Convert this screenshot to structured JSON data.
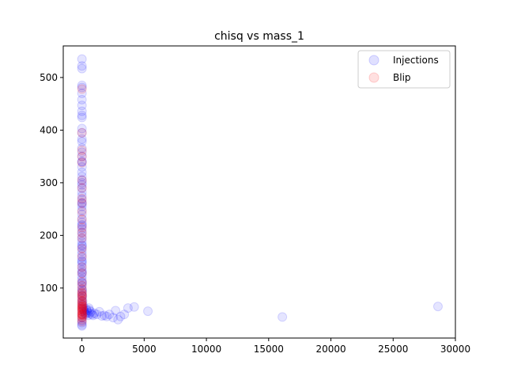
{
  "chart_data": {
    "type": "scatter",
    "title": "chisq vs mass_1",
    "xlabel": "",
    "ylabel": "",
    "xlim": [
      -1500,
      30000
    ],
    "ylim": [
      5,
      560
    ],
    "xticks": [
      0,
      5000,
      10000,
      15000,
      20000,
      25000,
      30000
    ],
    "yticks": [
      100,
      200,
      300,
      400,
      500
    ],
    "legend_position": "upper-right",
    "grid": false,
    "series": [
      {
        "name": "Injections",
        "color": "#0000ff",
        "alpha": 0.1,
        "points": [
          [
            2,
            535
          ],
          [
            3,
            522
          ],
          [
            4,
            517
          ],
          [
            2,
            485
          ],
          [
            5,
            481
          ],
          [
            3,
            470
          ],
          [
            2,
            458
          ],
          [
            4,
            447
          ],
          [
            3,
            436
          ],
          [
            2,
            428
          ],
          [
            5,
            424
          ],
          [
            3,
            403
          ],
          [
            2,
            395
          ],
          [
            4,
            383
          ],
          [
            3,
            378
          ],
          [
            2,
            366
          ],
          [
            4,
            358
          ],
          [
            3,
            350
          ],
          [
            2,
            340
          ],
          [
            5,
            330
          ],
          [
            3,
            320
          ],
          [
            2,
            312
          ],
          [
            4,
            305
          ],
          [
            3,
            296
          ],
          [
            2,
            290
          ],
          [
            4,
            282
          ],
          [
            3,
            275
          ],
          [
            2,
            268
          ],
          [
            5,
            262
          ],
          [
            3,
            255
          ],
          [
            2,
            248
          ],
          [
            4,
            240
          ],
          [
            3,
            232
          ],
          [
            2,
            225
          ],
          [
            4,
            218
          ],
          [
            3,
            212
          ],
          [
            2,
            206
          ],
          [
            5,
            200
          ],
          [
            3,
            194
          ],
          [
            2,
            188
          ],
          [
            4,
            182
          ],
          [
            3,
            176
          ],
          [
            2,
            170
          ],
          [
            4,
            164
          ],
          [
            3,
            158
          ],
          [
            2,
            152
          ],
          [
            5,
            146
          ],
          [
            3,
            140
          ],
          [
            2,
            134
          ],
          [
            4,
            128
          ],
          [
            3,
            122
          ],
          [
            2,
            116
          ],
          [
            4,
            110
          ],
          [
            3,
            104
          ],
          [
            2,
            98
          ],
          [
            5,
            92
          ],
          [
            3,
            86
          ],
          [
            2,
            80
          ],
          [
            4,
            74
          ],
          [
            3,
            68
          ],
          [
            2,
            62
          ],
          [
            4,
            56
          ],
          [
            3,
            50
          ],
          [
            2,
            44
          ],
          [
            5,
            38
          ],
          [
            3,
            34
          ],
          [
            2,
            30
          ],
          [
            4,
            28
          ],
          [
            8,
            260
          ],
          [
            10,
            300
          ],
          [
            6,
            340
          ],
          [
            12,
            220
          ],
          [
            15,
            180
          ],
          [
            9,
            150
          ],
          [
            20,
            130
          ],
          [
            25,
            110
          ],
          [
            30,
            95
          ],
          [
            40,
            85
          ],
          [
            60,
            75
          ],
          [
            80,
            68
          ],
          [
            120,
            62
          ],
          [
            150,
            58
          ],
          [
            200,
            55
          ],
          [
            250,
            52
          ],
          [
            300,
            50
          ],
          [
            350,
            60
          ],
          [
            400,
            57
          ],
          [
            450,
            53
          ],
          [
            500,
            48
          ],
          [
            550,
            62
          ],
          [
            600,
            58
          ],
          [
            650,
            52
          ],
          [
            700,
            55
          ],
          [
            800,
            50
          ],
          [
            900,
            48
          ],
          [
            1000,
            52
          ],
          [
            1200,
            50
          ],
          [
            1400,
            55
          ],
          [
            1600,
            47
          ],
          [
            1800,
            48
          ],
          [
            2000,
            46
          ],
          [
            2200,
            50
          ],
          [
            2500,
            44
          ],
          [
            2700,
            57
          ],
          [
            2900,
            40
          ],
          [
            3100,
            46
          ],
          [
            3400,
            50
          ],
          [
            3700,
            62
          ],
          [
            4200,
            64
          ],
          [
            5300,
            56
          ],
          [
            16100,
            45
          ],
          [
            28600,
            65
          ]
        ]
      },
      {
        "name": "Blip",
        "color": "#ff0000",
        "alpha": 0.1,
        "points": [
          [
            3,
            478
          ],
          [
            2,
            395
          ],
          [
            4,
            362
          ],
          [
            3,
            350
          ],
          [
            2,
            338
          ],
          [
            3,
            305
          ],
          [
            4,
            290
          ],
          [
            2,
            270
          ],
          [
            3,
            262
          ],
          [
            4,
            245
          ],
          [
            2,
            230
          ],
          [
            3,
            215
          ],
          [
            4,
            205
          ],
          [
            2,
            195
          ],
          [
            3,
            175
          ],
          [
            4,
            160
          ],
          [
            2,
            140
          ],
          [
            3,
            128
          ],
          [
            4,
            112
          ],
          [
            2,
            105
          ],
          [
            3,
            98
          ],
          [
            4,
            92
          ],
          [
            2,
            88
          ],
          [
            3,
            84
          ],
          [
            4,
            80
          ],
          [
            2,
            76
          ],
          [
            3,
            72
          ],
          [
            4,
            68
          ],
          [
            2,
            64
          ],
          [
            3,
            60
          ],
          [
            4,
            56
          ],
          [
            2,
            52
          ],
          [
            3,
            48
          ],
          [
            4,
            44
          ],
          [
            2,
            40
          ],
          [
            3,
            36
          ],
          [
            5,
            90
          ],
          [
            6,
            70
          ],
          [
            8,
            60
          ],
          [
            10,
            50
          ],
          [
            12,
            75
          ],
          [
            15,
            65
          ],
          [
            18,
            55
          ],
          [
            20,
            45
          ],
          [
            25,
            85
          ],
          [
            30,
            62
          ],
          [
            35,
            50
          ],
          [
            40,
            58
          ],
          [
            45,
            48
          ],
          [
            50,
            66
          ]
        ]
      }
    ]
  }
}
